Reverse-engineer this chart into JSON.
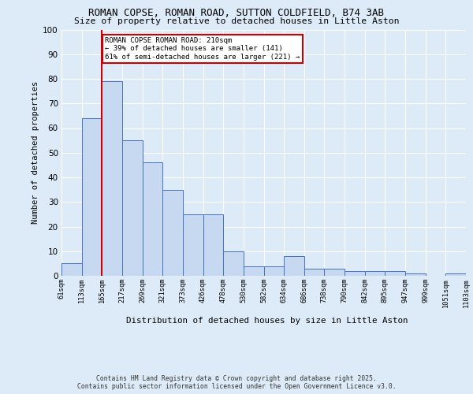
{
  "title_line1": "ROMAN COPSE, ROMAN ROAD, SUTTON COLDFIELD, B74 3AB",
  "title_line2": "Size of property relative to detached houses in Little Aston",
  "xlabel": "Distribution of detached houses by size in Little Aston",
  "ylabel": "Number of detached properties",
  "categories": [
    "61sqm",
    "113sqm",
    "165sqm",
    "217sqm",
    "269sqm",
    "321sqm",
    "373sqm",
    "426sqm",
    "478sqm",
    "530sqm",
    "582sqm",
    "634sqm",
    "686sqm",
    "738sqm",
    "790sqm",
    "842sqm",
    "895sqm",
    "947sqm",
    "999sqm",
    "1051sqm",
    "1103sqm"
  ],
  "values": [
    5,
    64,
    79,
    55,
    46,
    35,
    25,
    25,
    10,
    4,
    4,
    8,
    3,
    3,
    2,
    2,
    2,
    1,
    0,
    1
  ],
  "bar_color": "#c6d9f1",
  "bar_edge_color": "#4472c4",
  "vline_pos": 2.0,
  "vline_color": "#cc0000",
  "annotation_text": "ROMAN COPSE ROMAN ROAD: 210sqm\n← 39% of detached houses are smaller (141)\n61% of semi-detached houses are larger (221) →",
  "annotation_box_color": "#cc0000",
  "footer_text": "Contains HM Land Registry data © Crown copyright and database right 2025.\nContains public sector information licensed under the Open Government Licence v3.0.",
  "bg_color": "#ddeaf7",
  "plot_bg_color": "#ddeaf7",
  "grid_color": "#ffffff",
  "ylim": [
    0,
    100
  ],
  "yticks": [
    0,
    10,
    20,
    30,
    40,
    50,
    60,
    70,
    80,
    90,
    100
  ]
}
